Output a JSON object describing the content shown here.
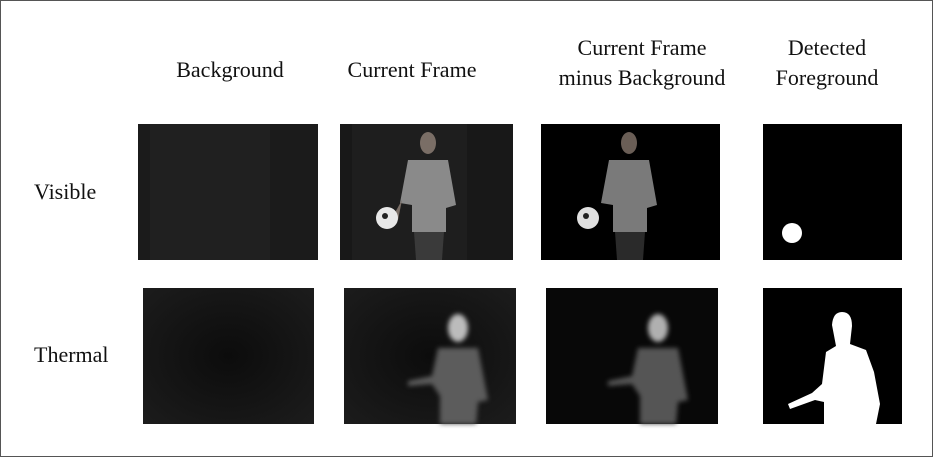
{
  "figure": {
    "column_headers": [
      [
        "Background"
      ],
      [
        "Current Frame"
      ],
      [
        "Current Frame",
        "minus Background"
      ],
      [
        "Detected",
        "Foreground"
      ]
    ],
    "row_labels": [
      "Visible",
      "Thermal"
    ]
  }
}
